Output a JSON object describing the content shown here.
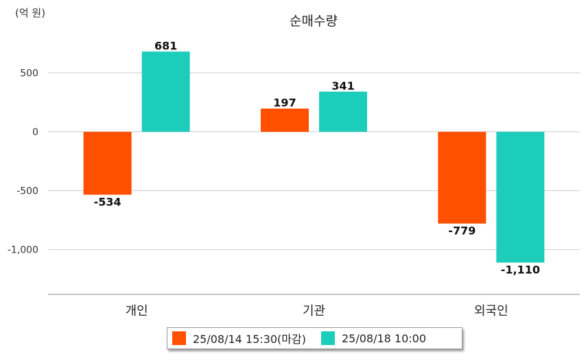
{
  "chart_data": {
    "type": "bar",
    "title": "순매수량",
    "unit_label": "(억 원)",
    "categories": [
      "개인",
      "기관",
      "외국인"
    ],
    "series": [
      {
        "name": "25/08/14 15:30(마감)",
        "color": "#FF5000",
        "values": [
          -534,
          197,
          -779
        ]
      },
      {
        "name": "25/08/18 10:00",
        "color": "#1DCDBC",
        "values": [
          681,
          341,
          -1110
        ]
      }
    ],
    "ylim": [
      -1400,
      800
    ],
    "yticks": [
      500,
      0,
      -500,
      -1000
    ],
    "ytick_labels": [
      "500",
      "0",
      "-500",
      "-1,000"
    ],
    "grid": true,
    "legend_position": "bottom"
  }
}
